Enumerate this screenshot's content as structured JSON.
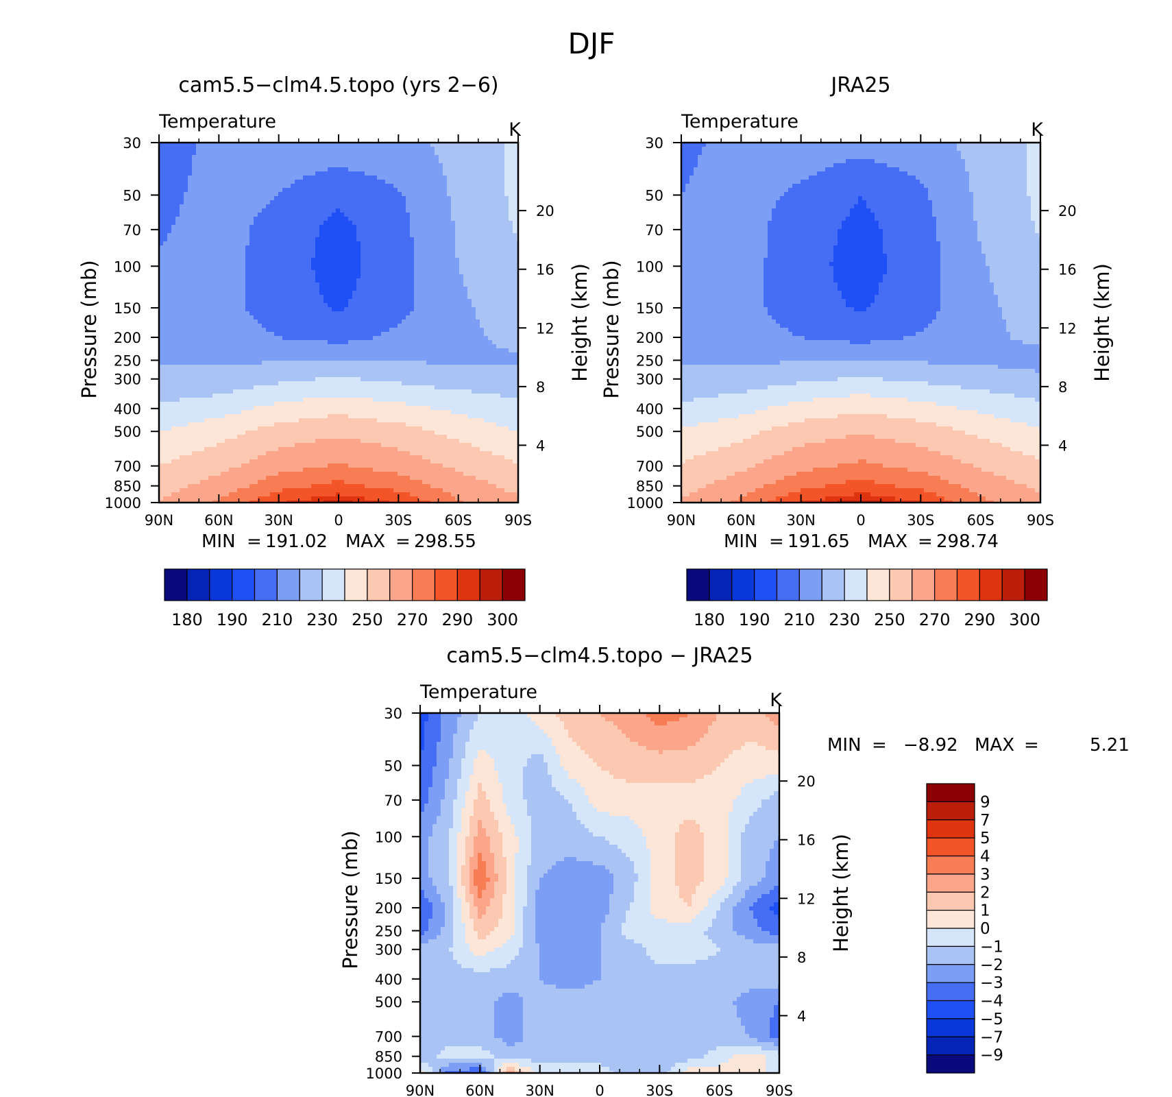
{
  "figure": {
    "title": "DJF"
  },
  "colorbars": {
    "absolute_ticks": [
      "180",
      "190",
      "210",
      "230",
      "250",
      "270",
      "290",
      "300"
    ],
    "absolute_colors": [
      "#0a0a7d",
      "#0324b4",
      "#0a37d9",
      "#1e50f5",
      "#466ef5",
      "#7d9ef5",
      "#aac3f5",
      "#d5e6fa",
      "#fde6d7",
      "#fcc8b2",
      "#fba68a",
      "#f87d55",
      "#f45528",
      "#de3410",
      "#bb1e0a",
      "#8c0005"
    ],
    "diff_ticks": [
      "9",
      "7",
      "5",
      "4",
      "3",
      "2",
      "1",
      "0",
      "−1",
      "−2",
      "−3",
      "−4",
      "−5",
      "−7",
      "−9"
    ],
    "diff_colors": [
      "#8c0005",
      "#bb1e0a",
      "#de3410",
      "#f45528",
      "#f87d55",
      "#fba68a",
      "#fcc8b2",
      "#fde6d7",
      "#d5e6fa",
      "#aac3f5",
      "#7d9ef5",
      "#466ef5",
      "#1e50f5",
      "#0a37d9",
      "#0324b4",
      "#0a0a7d"
    ]
  },
  "chart_data": [
    {
      "type": "contour",
      "title": "cam5.5−clm4.5.topo (yrs 2−6)",
      "left_label": "Temperature",
      "right_label": "K",
      "xlabel": "",
      "ylabel": "Pressure (mb)",
      "y2label": "Height (km)",
      "x_ticks": [
        "90N",
        "60N",
        "30N",
        "0",
        "30S",
        "60S",
        "90S"
      ],
      "y_ticks": [
        "30",
        "50",
        "70",
        "100",
        "150",
        "200",
        "250",
        "300",
        "400",
        "500",
        "700",
        "850",
        "1000"
      ],
      "height_ticks": [
        "20",
        "16",
        "12",
        "8",
        "4"
      ],
      "xlim": [
        90,
        -90
      ],
      "ylim": [
        1000,
        30
      ],
      "y_scale": "log",
      "min_label": "MIN",
      "min_value": "191.02",
      "max_label": "MAX",
      "max_value": "298.55",
      "units": "K",
      "levels": [
        180,
        185,
        190,
        200,
        210,
        220,
        230,
        240,
        250,
        260,
        270,
        280,
        290,
        295,
        300
      ],
      "x": [
        90,
        60,
        30,
        0,
        -30,
        -60,
        -90
      ],
      "y": [
        30,
        50,
        70,
        100,
        150,
        200,
        250,
        300,
        400,
        500,
        700,
        850,
        1000
      ],
      "values": [
        [
          205,
          213,
          217,
          217,
          217,
          223,
          232
        ],
        [
          207,
          214,
          210,
          202,
          209,
          222,
          232
        ],
        [
          209,
          214,
          206,
          197,
          207,
          221,
          231
        ],
        [
          211,
          214,
          205,
          196,
          206,
          220,
          228
        ],
        [
          213,
          214,
          205,
          199,
          207,
          218,
          226
        ],
        [
          215,
          215,
          210,
          207,
          212,
          218,
          222
        ],
        [
          219,
          219,
          219,
          219,
          219,
          219,
          219
        ],
        [
          222,
          223,
          228,
          231,
          228,
          225,
          224
        ],
        [
          232,
          236,
          243,
          247,
          243,
          238,
          233
        ],
        [
          240,
          246,
          254,
          258,
          254,
          247,
          240
        ],
        [
          250,
          257,
          266,
          271,
          266,
          258,
          251
        ],
        [
          256,
          264,
          276,
          283,
          276,
          265,
          257
        ],
        [
          260,
          271,
          289,
          297,
          289,
          271,
          262
        ]
      ]
    },
    {
      "type": "contour",
      "title": "JRA25",
      "left_label": "Temperature",
      "right_label": "K",
      "xlabel": "",
      "ylabel": "Pressure (mb)",
      "y2label": "Height (km)",
      "x_ticks": [
        "90N",
        "60N",
        "30N",
        "0",
        "30S",
        "60S",
        "90S"
      ],
      "y_ticks": [
        "30",
        "50",
        "70",
        "100",
        "150",
        "200",
        "250",
        "300",
        "400",
        "500",
        "700",
        "850",
        "1000"
      ],
      "height_ticks": [
        "20",
        "16",
        "12",
        "8",
        "4"
      ],
      "xlim": [
        90,
        -90
      ],
      "ylim": [
        1000,
        30
      ],
      "y_scale": "log",
      "min_label": "MIN",
      "min_value": "191.65",
      "max_label": "MAX",
      "max_value": "298.74",
      "units": "K",
      "levels": [
        180,
        185,
        190,
        200,
        210,
        220,
        230,
        240,
        250,
        260,
        270,
        280,
        290,
        295,
        300
      ],
      "x": [
        90,
        60,
        30,
        0,
        -30,
        -60,
        -90
      ],
      "y": [
        30,
        50,
        70,
        100,
        150,
        200,
        250,
        300,
        400,
        500,
        700,
        850,
        1000
      ],
      "values": [
        [
          208,
          213,
          216,
          214,
          216,
          223,
          232
        ],
        [
          210,
          214,
          208,
          200,
          208,
          222,
          232
        ],
        [
          212,
          214,
          205,
          197,
          206,
          221,
          231
        ],
        [
          213,
          214,
          204,
          196,
          205,
          219,
          227
        ],
        [
          214,
          214,
          204,
          199,
          206,
          218,
          224
        ],
        [
          216,
          215,
          210,
          207,
          211,
          218,
          222
        ],
        [
          219,
          219,
          219,
          219,
          219,
          218,
          217
        ],
        [
          222,
          224,
          228,
          231,
          228,
          225,
          222
        ],
        [
          232,
          237,
          244,
          248,
          244,
          238,
          233
        ],
        [
          241,
          247,
          255,
          259,
          255,
          248,
          241
        ],
        [
          251,
          258,
          267,
          272,
          267,
          259,
          252
        ],
        [
          256,
          265,
          277,
          284,
          277,
          266,
          258
        ],
        [
          261,
          272,
          290,
          298,
          290,
          272,
          263
        ]
      ]
    },
    {
      "type": "contour",
      "title": "cam5.5−clm4.5.topo − JRA25",
      "left_label": "Temperature",
      "right_label": "K",
      "xlabel": "",
      "ylabel": "Pressure (mb)",
      "y2label": "Height (km)",
      "x_ticks": [
        "90N",
        "60N",
        "30N",
        "0",
        "30S",
        "60S",
        "90S"
      ],
      "y_ticks": [
        "30",
        "50",
        "70",
        "100",
        "150",
        "200",
        "250",
        "300",
        "400",
        "500",
        "700",
        "850",
        "1000"
      ],
      "height_ticks": [
        "20",
        "16",
        "12",
        "8",
        "4"
      ],
      "xlim": [
        90,
        -90
      ],
      "ylim": [
        1000,
        30
      ],
      "y_scale": "log",
      "min_label": "MIN",
      "min_value": "−8.92",
      "max_label": "MAX",
      "max_value": "5.21",
      "units": "K",
      "levels": [
        -9,
        -7,
        -5,
        -4,
        -3,
        -2,
        -1,
        0,
        1,
        2,
        3,
        4,
        5,
        7,
        9
      ],
      "x": [
        90,
        75,
        60,
        45,
        30,
        15,
        0,
        -15,
        -30,
        -45,
        -60,
        -75,
        -90
      ],
      "y": [
        30,
        50,
        70,
        100,
        150,
        200,
        250,
        300,
        400,
        500,
        700,
        850,
        1000
      ],
      "values": [
        [
          -4.5,
          -2.5,
          -1.0,
          -0.5,
          0.5,
          1.5,
          2.0,
          2.5,
          3.5,
          3.0,
          2.0,
          1.5,
          2.5
        ],
        [
          -4.0,
          -2.0,
          0.5,
          -0.5,
          -1.5,
          0.5,
          1.0,
          1.5,
          1.5,
          1.5,
          1.0,
          0.5,
          0.5
        ],
        [
          -3.5,
          -1.5,
          1.5,
          -0.5,
          -1.5,
          -1.0,
          0.5,
          0.5,
          0.5,
          0.5,
          0.5,
          -0.5,
          -1.5
        ],
        [
          -2.5,
          -1.0,
          2.5,
          0.5,
          -1.5,
          -1.5,
          -1.0,
          -0.5,
          0.5,
          1.5,
          0.5,
          -1.5,
          -2.0
        ],
        [
          -2.5,
          -1.0,
          4.0,
          0.5,
          -2.0,
          -2.5,
          -2.5,
          -1.5,
          0.5,
          1.5,
          0.5,
          -1.5,
          -2.5
        ],
        [
          -4.0,
          -1.5,
          2.5,
          0.5,
          -2.5,
          -2.5,
          -2.5,
          -1.0,
          0.5,
          1.0,
          -1.0,
          -3.0,
          -4.5
        ],
        [
          -3.5,
          -1.5,
          1.5,
          0.5,
          -2.5,
          -2.5,
          -2.0,
          -0.5,
          -0.5,
          -0.5,
          -1.5,
          -2.5,
          -3.5
        ],
        [
          -1.5,
          -1.0,
          0.5,
          -0.5,
          -2.0,
          -2.5,
          -2.0,
          -1.5,
          -0.5,
          -0.5,
          -1.0,
          -1.5,
          -1.5
        ],
        [
          -1.5,
          -1.5,
          -1.5,
          -1.5,
          -2.0,
          -2.5,
          -2.0,
          -1.5,
          -1.5,
          -1.5,
          -1.5,
          -1.5,
          -1.5
        ],
        [
          -1.5,
          -1.5,
          -1.5,
          -2.5,
          -1.5,
          -1.5,
          -1.5,
          -1.5,
          -1.5,
          -1.5,
          -1.5,
          -2.5,
          -3.0
        ],
        [
          -1.5,
          -1.5,
          -1.5,
          -2.5,
          -1.5,
          -1.5,
          -1.5,
          -1.5,
          -1.5,
          -1.5,
          -1.5,
          -2.0,
          -3.5
        ],
        [
          -1.5,
          -0.5,
          -0.5,
          -1.5,
          -1.5,
          -1.5,
          -1.5,
          -1.5,
          -1.5,
          -1.5,
          -0.5,
          0.5,
          -0.5
        ],
        [
          0.5,
          -3.5,
          -4.0,
          2.5,
          -0.5,
          -0.5,
          -0.5,
          -1.5,
          -1.5,
          0.5,
          0.5,
          0.5,
          -0.5
        ]
      ]
    }
  ]
}
